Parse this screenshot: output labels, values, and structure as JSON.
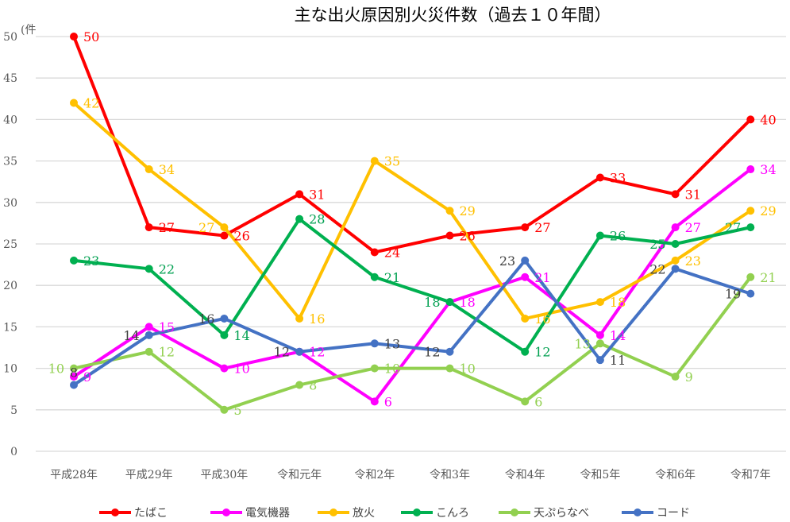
{
  "chart_data": {
    "type": "line",
    "title": "主な出火原因別火災件数（過去１０年間）",
    "ylabel": "(件",
    "xlabel": "",
    "categories": [
      "平成28年",
      "平成29年",
      "平成30年",
      "令和元年",
      "令和2年",
      "令和3年",
      "令和4年",
      "令和5年",
      "令和6年",
      "令和7年"
    ],
    "ylim": [
      0,
      50
    ],
    "yticks": [
      0,
      5,
      10,
      15,
      20,
      25,
      30,
      35,
      40,
      45,
      50
    ],
    "grid": true,
    "legend_position": "bottom",
    "series": [
      {
        "name": "たばこ",
        "color": "#FF0000",
        "label_color": "#FF0000",
        "values": [
          50,
          27,
          26,
          31,
          24,
          26,
          27,
          33,
          31,
          40
        ]
      },
      {
        "name": "電気機器",
        "color": "#FF00FF",
        "label_color": "#FF00FF",
        "values": [
          9,
          15,
          10,
          12,
          6,
          18,
          21,
          14,
          27,
          34
        ]
      },
      {
        "name": "放火",
        "color": "#FFC000",
        "label_color": "#FFC000",
        "values": [
          42,
          34,
          27,
          16,
          35,
          29,
          16,
          18,
          23,
          29
        ]
      },
      {
        "name": "こんろ",
        "color": "#00B050",
        "label_color": "#00A050",
        "values": [
          23,
          22,
          14,
          28,
          21,
          18,
          12,
          26,
          25,
          27
        ]
      },
      {
        "name": "天ぷらなべ",
        "color": "#92D050",
        "label_color": "#92D050",
        "values": [
          10,
          12,
          5,
          8,
          10,
          10,
          6,
          13,
          9,
          21
        ]
      },
      {
        "name": "コード",
        "color": "#4472C4",
        "label_color": "#404040",
        "values": [
          8,
          14,
          16,
          12,
          13,
          12,
          23,
          11,
          22,
          19
        ]
      }
    ]
  }
}
